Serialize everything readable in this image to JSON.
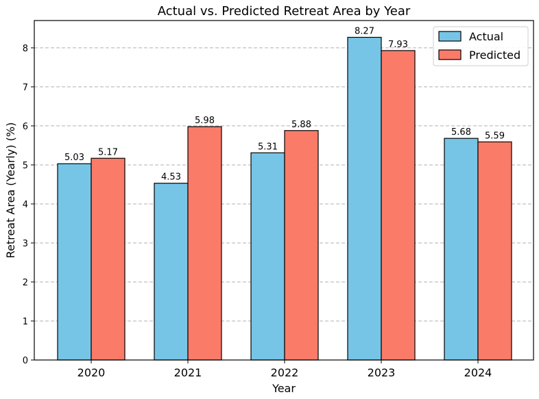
{
  "chart_data": {
    "type": "bar",
    "title": "Actual vs. Predicted Retreat Area by Year",
    "xlabel": "Year",
    "ylabel": "Retreat Area (Yearly) (%)",
    "categories": [
      "2020",
      "2021",
      "2022",
      "2023",
      "2024"
    ],
    "series": [
      {
        "name": "Actual",
        "color": "#77c5e6",
        "values": [
          5.03,
          4.53,
          5.31,
          8.27,
          5.68
        ],
        "labels": [
          "5.03",
          "4.53",
          "5.31",
          "8.27",
          "5.68"
        ]
      },
      {
        "name": "Predicted",
        "color": "#fb7b69",
        "values": [
          5.17,
          5.98,
          5.88,
          7.93,
          5.59
        ],
        "labels": [
          "5.17",
          "5.98",
          "5.88",
          "7.93",
          "5.59"
        ]
      }
    ],
    "ylim": [
      0,
      8.7
    ],
    "yticks": [
      "0",
      "1",
      "2",
      "3",
      "4",
      "5",
      "6",
      "7",
      "8"
    ],
    "grid": "y-dashed",
    "legend_position": "top-right"
  }
}
